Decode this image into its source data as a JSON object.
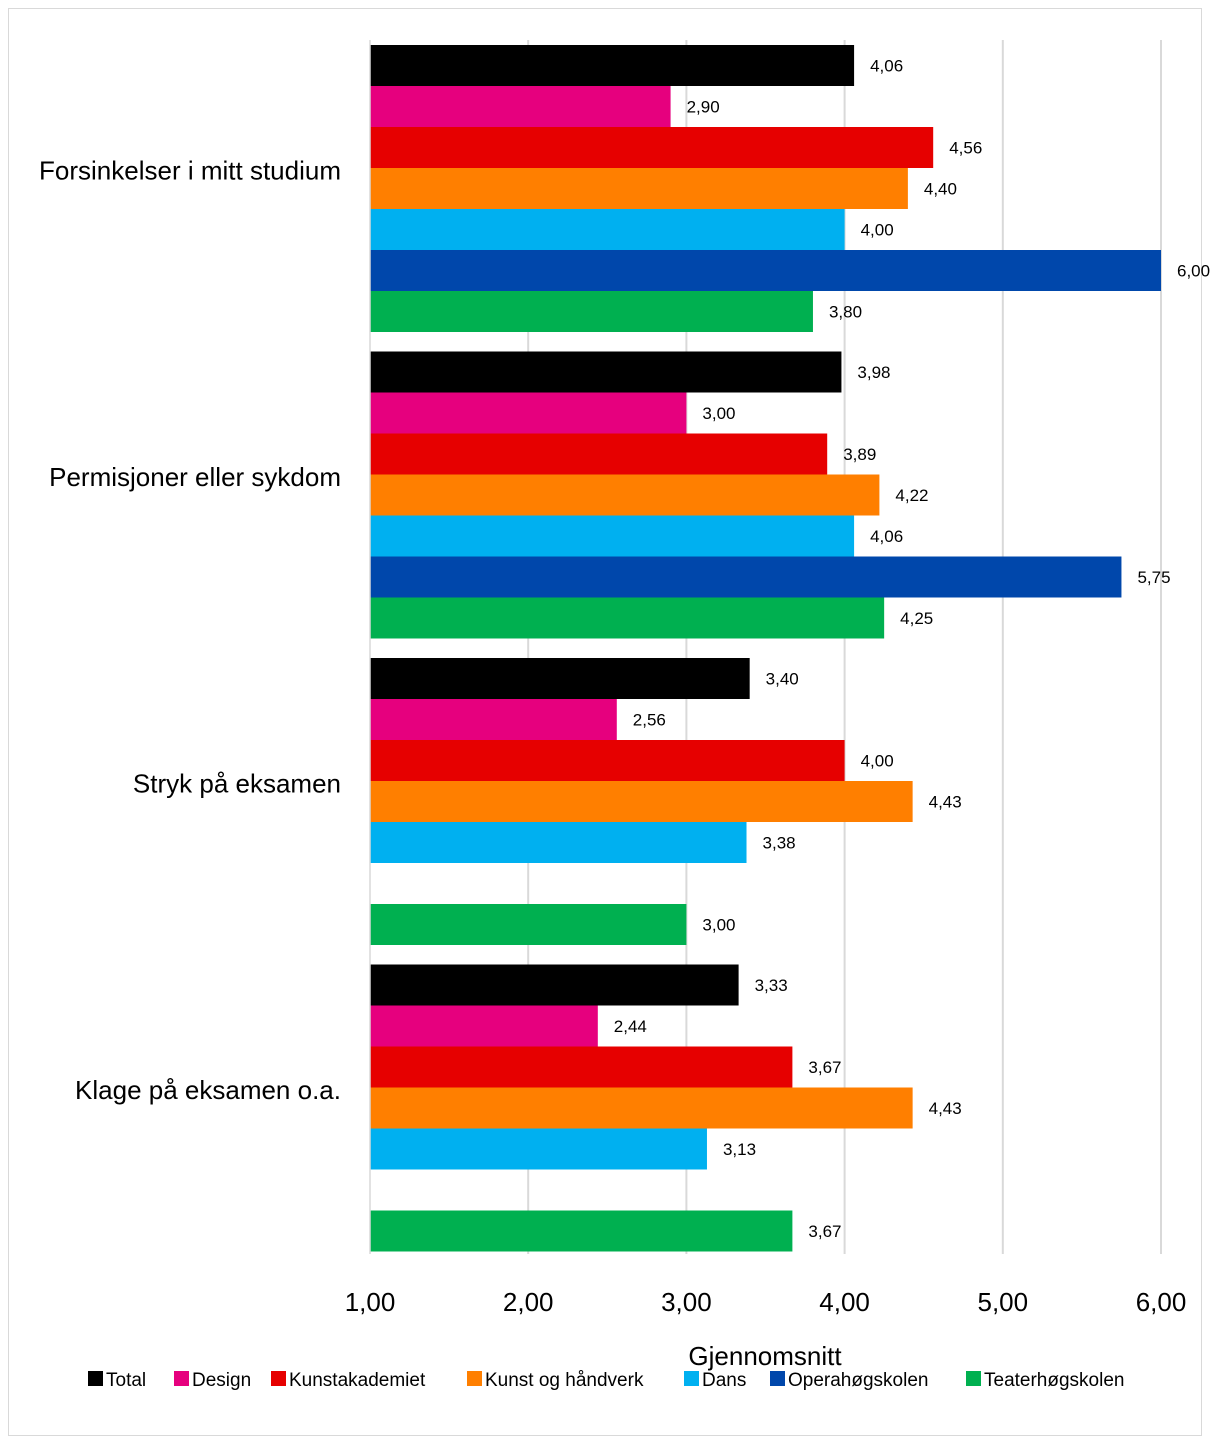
{
  "chart_data": {
    "type": "bar",
    "orientation": "horizontal",
    "categories": [
      "Forsinkelser i mitt studium",
      "Permisjoner eller sykdom",
      "Stryk på eksamen",
      "Klage på eksamen o.a."
    ],
    "series": [
      {
        "name": "Total",
        "color": "#000000",
        "values": [
          4.06,
          3.98,
          3.4,
          3.33
        ],
        "labels": [
          "4,06",
          "3,98",
          "3,40",
          "3,33"
        ]
      },
      {
        "name": "Design",
        "color": "#E6007E",
        "values": [
          2.9,
          3.0,
          2.56,
          2.44
        ],
        "labels": [
          "2,90",
          "3,00",
          "2,56",
          "2,44"
        ]
      },
      {
        "name": "Kunstakademiet",
        "color": "#E60000",
        "values": [
          4.56,
          3.89,
          4.0,
          3.67
        ],
        "labels": [
          "4,56",
          "3,89",
          "4,00",
          "3,67"
        ]
      },
      {
        "name": "Kunst og håndverk",
        "color": "#FF7F00",
        "values": [
          4.4,
          4.22,
          4.43,
          4.43
        ],
        "labels": [
          "4,40",
          "4,22",
          "4,43",
          "4,43"
        ]
      },
      {
        "name": "Dans",
        "color": "#00B0F0",
        "values": [
          4.0,
          4.06,
          3.38,
          3.13
        ],
        "labels": [
          "4,00",
          "4,06",
          "3,38",
          "3,13"
        ]
      },
      {
        "name": "Operahøgskolen",
        "color": "#0047AB",
        "values": [
          6.0,
          5.75,
          null,
          null
        ],
        "labels": [
          "6,00",
          "5,75",
          "",
          ""
        ]
      },
      {
        "name": "Teaterhøgskolen",
        "color": "#00B050",
        "values": [
          3.8,
          4.25,
          3.0,
          3.67
        ],
        "labels": [
          "3,80",
          "4,25",
          "3,00",
          "3,67"
        ]
      }
    ],
    "xlim": [
      1,
      6
    ],
    "xticks": [
      1,
      2,
      3,
      4,
      5,
      6
    ],
    "xtick_labels": [
      "1,00",
      "2,00",
      "3,00",
      "4,00",
      "5,00",
      "6,00"
    ],
    "xlabel": "Gjennomsnitt",
    "grid": "vertical",
    "legend_position": "bottom"
  }
}
